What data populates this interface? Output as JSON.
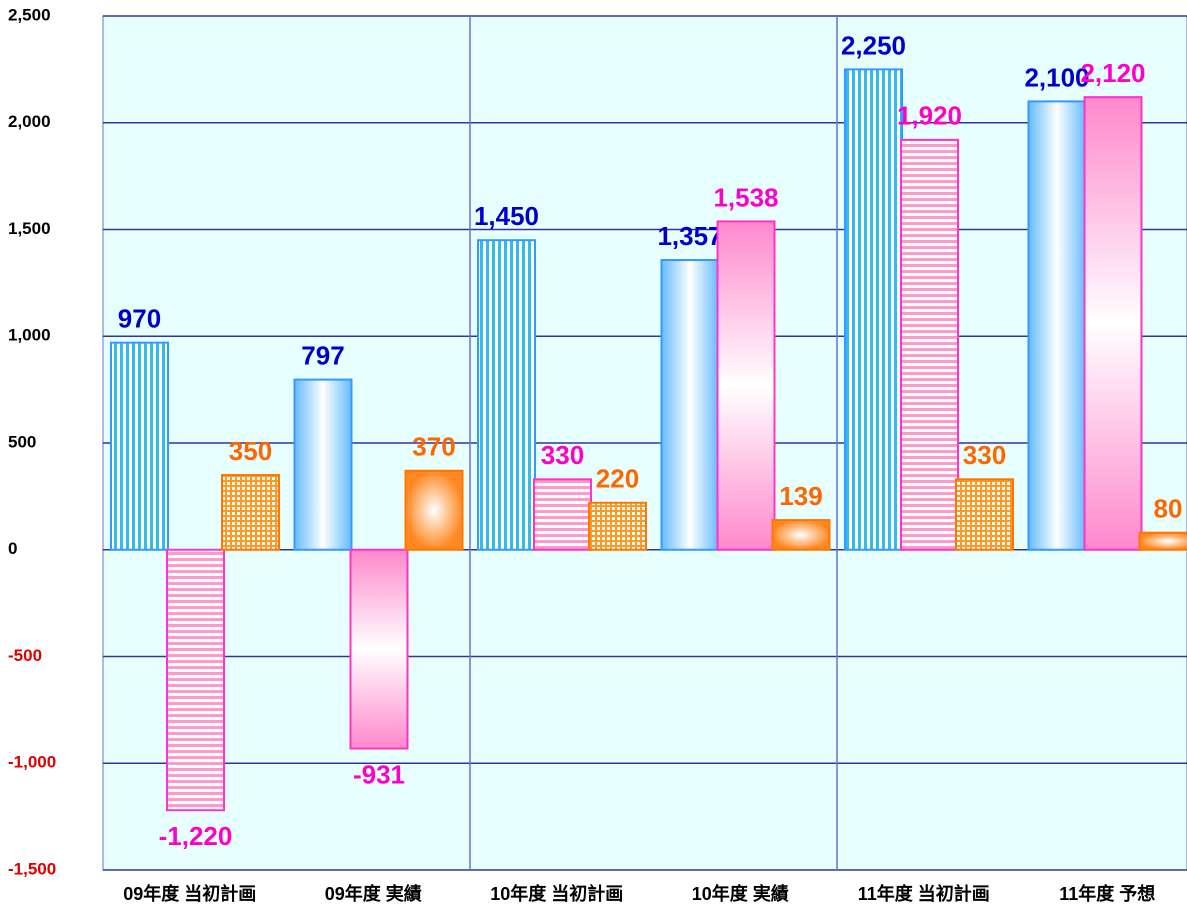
{
  "chart_data": {
    "type": "bar",
    "categories": [
      "09年度 当初計画",
      "09年度 実績",
      "10年度 当初計画",
      "10年度 実績",
      "11年度 当初計画",
      "11年度 予想"
    ],
    "series": [
      {
        "color": "#3399ff",
        "label_color": "#0000cc",
        "values": [
          970,
          797,
          1450,
          1357,
          2250,
          2100
        ],
        "value_labels": [
          "970",
          "797",
          "1,450",
          "1,357",
          "2,250",
          "2,100"
        ]
      },
      {
        "color": "#ff33cc",
        "label_color": "#ff00cc",
        "values": [
          -1220,
          -931,
          330,
          1538,
          1920,
          2120
        ],
        "value_labels": [
          "-1,220",
          "-931",
          "330",
          "1,538",
          "1,920",
          "2,120"
        ]
      },
      {
        "color": "#ff7700",
        "label_color": "#ff6600",
        "values": [
          350,
          370,
          220,
          139,
          330,
          80
        ],
        "value_labels": [
          "350",
          "370",
          "220",
          "139",
          "330",
          "80"
        ]
      }
    ],
    "ylim": [
      -1500,
      2500
    ],
    "yticks": [
      {
        "value": -1500,
        "label": "-1,500"
      },
      {
        "value": -1000,
        "label": "-1,000"
      },
      -500,
      0,
      500,
      {
        "value": 1000,
        "label": "1,000"
      },
      {
        "value": 1500,
        "label": "1,500"
      },
      {
        "value": 2000,
        "label": "2,000"
      },
      {
        "value": 2500,
        "label": "2,500"
      }
    ],
    "negative_tick_color": "#e00000",
    "grid": true
  }
}
